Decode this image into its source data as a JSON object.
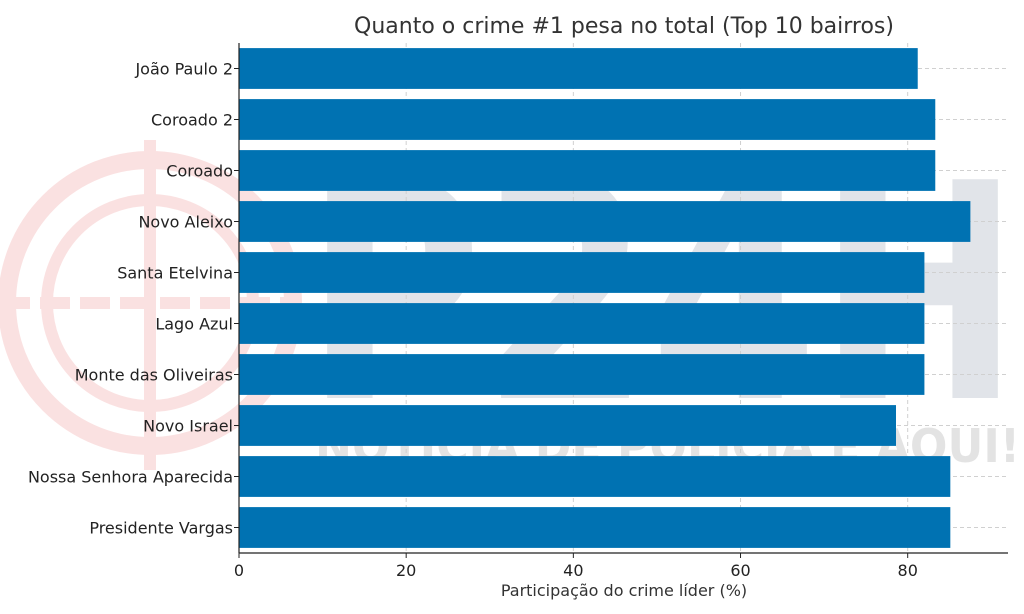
{
  "watermark": {
    "logo_text": "P24H",
    "slogan": "NOTÍCIA DE POLÍCIA É AQUI!",
    "colors": {
      "dark": "#1f3a5a",
      "red": "#e02020",
      "gray": "#333333"
    }
  },
  "colors": {
    "bar": "#0072b2",
    "grid": "#d0d0d0",
    "axis": "#222222"
  },
  "chart_data": {
    "type": "bar",
    "orientation": "horizontal",
    "title": "Quanto o crime #1 pesa no total (Top 10 bairros)",
    "xlabel": "Participação do crime líder (%)",
    "ylabel": "",
    "xlim": [
      0,
      92
    ],
    "xticks": [
      0,
      20,
      40,
      60,
      80
    ],
    "grid": true,
    "categories": [
      "João Paulo 2",
      "Coroado 2",
      "Coroado",
      "Novo Aleixo",
      "Santa Etelvina",
      "Lago Azul",
      "Monte das Oliveiras",
      "Novo Israel",
      "Nossa Senhora Aparecida",
      "Presidente Vargas"
    ],
    "values": [
      81.2,
      83.3,
      83.3,
      87.5,
      82.0,
      82.0,
      82.0,
      78.6,
      85.1,
      85.1
    ]
  }
}
